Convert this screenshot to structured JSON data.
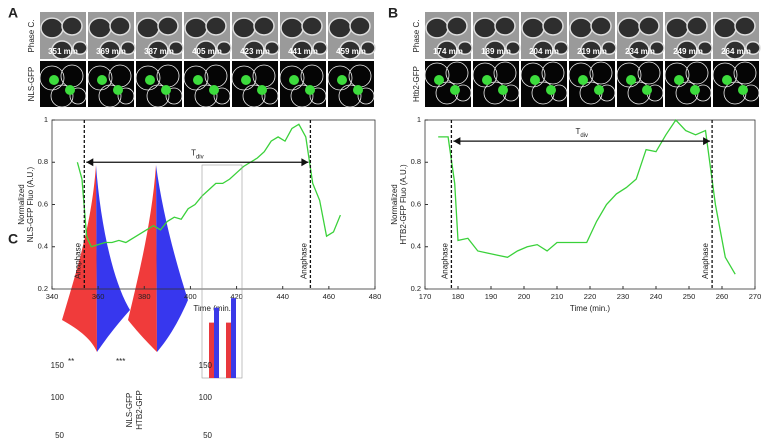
{
  "panels": [
    {
      "letter": "A",
      "rows": [
        "Phase C.",
        "NLS-GFP"
      ],
      "times": [
        "351 min",
        "369 min",
        "387 min",
        "405 min",
        "423 min",
        "441 min",
        "459 min"
      ]
    },
    {
      "letter": "B",
      "rows": [
        "Phase C.",
        "Htb2-GFP"
      ],
      "times": [
        "174 min",
        "189 min",
        "204 min",
        "219 min",
        "234 min",
        "249 min",
        "264 min"
      ]
    },
    {
      "letter": "C",
      "stars": [
        "**",
        "***"
      ],
      "labels": [
        "NLS-GFP",
        "HTB2-GFP"
      ],
      "left_ticks": [
        150,
        100,
        50
      ],
      "right_ticks": [
        150,
        100,
        50
      ]
    }
  ],
  "chart_data": [
    {
      "type": "line",
      "ylabel": [
        "Normalized",
        "NLS-GFP Fluo (A.U.)"
      ],
      "xlabel": "Time (min.)",
      "color": "#3ad13a",
      "x": [
        351,
        353,
        355,
        357,
        360,
        363,
        366,
        369,
        372,
        375,
        378,
        381,
        384,
        387,
        390,
        393,
        396,
        399,
        402,
        405,
        408,
        411,
        414,
        417,
        420,
        423,
        426,
        429,
        432,
        435,
        438,
        441,
        444,
        447,
        450,
        453,
        456,
        459,
        462,
        465
      ],
      "values": [
        0.8,
        0.72,
        0.45,
        0.4,
        0.41,
        0.42,
        0.42,
        0.43,
        0.42,
        0.44,
        0.46,
        0.48,
        0.5,
        0.48,
        0.52,
        0.54,
        0.53,
        0.58,
        0.6,
        0.64,
        0.67,
        0.7,
        0.7,
        0.72,
        0.75,
        0.78,
        0.8,
        0.82,
        0.85,
        0.9,
        0.92,
        0.9,
        0.96,
        0.98,
        0.92,
        0.7,
        0.62,
        0.45,
        0.47,
        0.55
      ],
      "xlim": [
        340,
        480
      ],
      "xticks": [
        340,
        360,
        380,
        400,
        420,
        440,
        460,
        480
      ],
      "ylim": [
        0.2,
        1
      ],
      "yticks": [
        0.2,
        0.4,
        0.6,
        0.8,
        1
      ],
      "markers": [
        354,
        452
      ],
      "marker_label": "Anaphase",
      "arrow_y": 0.8,
      "tdiv": {
        "main": "T",
        "sub": "div"
      }
    },
    {
      "type": "line",
      "ylabel": [
        "Normalized",
        "HTB2-GFP Fluo (A.U.)"
      ],
      "xlabel": "Time (min.)",
      "color": "#3ad13a",
      "x": [
        174,
        177,
        179,
        180,
        183,
        186,
        189,
        192,
        195,
        198,
        201,
        204,
        207,
        210,
        213,
        216,
        219,
        222,
        225,
        228,
        231,
        234,
        237,
        240,
        243,
        246,
        249,
        252,
        255,
        258,
        261,
        264
      ],
      "values": [
        0.92,
        0.92,
        0.7,
        0.43,
        0.44,
        0.38,
        0.37,
        0.36,
        0.35,
        0.38,
        0.4,
        0.41,
        0.38,
        0.42,
        0.42,
        0.42,
        0.42,
        0.52,
        0.6,
        0.65,
        0.68,
        0.72,
        0.86,
        0.85,
        0.93,
        1.0,
        0.95,
        0.93,
        0.95,
        0.6,
        0.35,
        0.27
      ],
      "xlim": [
        170,
        270
      ],
      "xticks": [
        170,
        180,
        190,
        200,
        210,
        220,
        230,
        240,
        250,
        260,
        270
      ],
      "ylim": [
        0.2,
        1
      ],
      "yticks": [
        0.2,
        0.4,
        0.6,
        0.8,
        1
      ],
      "markers": [
        178,
        257
      ],
      "marker_label": "Anaphase",
      "arrow_y": 0.9,
      "tdiv": {
        "main": "T",
        "sub": "div"
      }
    },
    {
      "type": "bar",
      "ylim": [
        0,
        1
      ],
      "series": [
        {
          "color": "#e8383d",
          "values": [
            0.26,
            0.26
          ]
        },
        {
          "color": "#3a3ae8",
          "values": [
            0.33,
            0.375
          ]
        }
      ]
    }
  ]
}
